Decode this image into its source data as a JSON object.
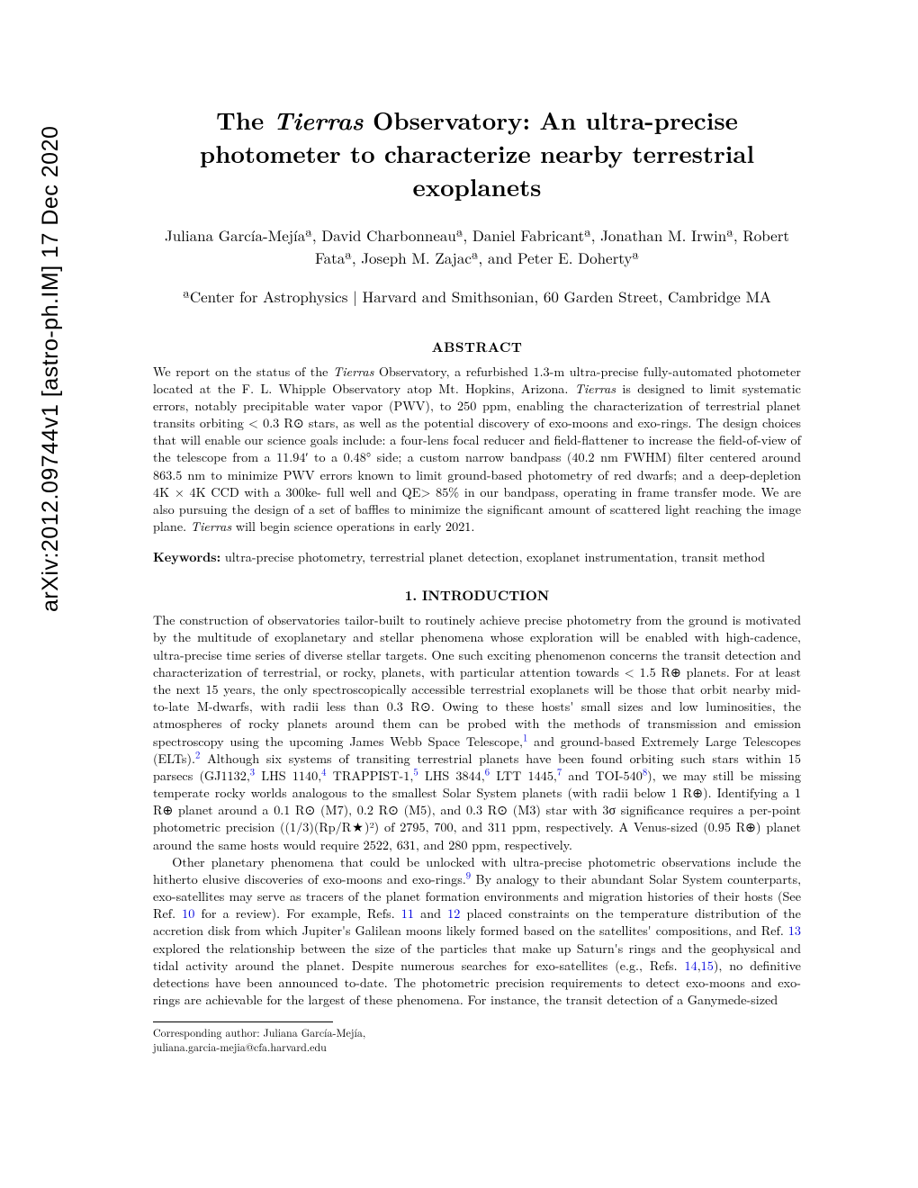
{
  "arxiv_stamp": "arXiv:2012.09744v1  [astro-ph.IM]  17 Dec 2020",
  "title_prefix": "The ",
  "title_italic": "Tierras",
  "title_rest": " Observatory: An ultra-precise photometer to characterize nearby terrestrial exoplanets",
  "authors_line1": "Juliana García-Mejíaª, David Charbonneauª, Daniel Fabricantª, Jonathan M. Irwinª, Robert",
  "authors_line2": "Fataª, Joseph M. Zajacª, and Peter E. Dohertyª",
  "affiliation": "ªCenter for Astrophysics | Harvard and Smithsonian, 60 Garden Street, Cambridge MA",
  "abstract_heading": "ABSTRACT",
  "abstract_text_1": "We report on the status of the ",
  "abstract_italic_1": "Tierras",
  "abstract_text_2": " Observatory, a refurbished 1.3-m ultra-precise fully-automated photometer located at the F. L. Whipple Observatory atop Mt. Hopkins, Arizona. ",
  "abstract_italic_2": "Tierras",
  "abstract_text_3": " is designed to limit systematic errors, notably precipitable water vapor (PWV), to 250 ppm, enabling the characterization of terrestrial planet transits orbiting < 0.3 R⊙ stars, as well as the potential discovery of exo-moons and exo-rings. The design choices that will enable our science goals include: a four-lens focal reducer and field-flattener to increase the field-of-view of the telescope from a 11.94′ to a 0.48° side; a custom narrow bandpass (40.2 nm FWHM) filter centered around 863.5 nm to minimize PWV errors known to limit ground-based photometry of red dwarfs; and a deep-depletion 4K × 4K CCD with a 300ke- full well and QE> 85% in our bandpass, operating in frame transfer mode. We are also pursuing the design of a set of baffles to minimize the significant amount of scattered light reaching the image plane. ",
  "abstract_italic_3": "Tierras",
  "abstract_text_4": " will begin science operations in early 2021.",
  "keywords_label": "Keywords:",
  "keywords_text": " ultra-precise photometry, terrestrial planet detection, exoplanet instrumentation, transit method",
  "section1_heading": "1. INTRODUCTION",
  "para1_a": "The construction of observatories tailor-built to routinely achieve precise photometry from the ground is motivated by the multitude of exoplanetary and stellar phenomena whose exploration will be enabled with high-cadence, ultra-precise time series of diverse stellar targets. One such exciting phenomenon concerns the transit detection and characterization of terrestrial, or rocky, planets, with particular attention towards < 1.5 R⊕ planets. For at least the next 15 years, the only spectroscopically accessible terrestrial exoplanets will be those that orbit nearby mid-to-late M-dwarfs, with radii less than 0.3 R⊙. Owing to these hosts' small sizes and low luminosities, the atmospheres of rocky planets around them can be probed with the methods of transmission and emission spectroscopy using the upcoming James Webb Space Telescope,",
  "ref1": "1",
  "para1_b": " and ground-based Extremely Large Telescopes (ELTs).",
  "ref2": "2",
  "para1_c": " Although six systems of transiting terrestrial planets have been found orbiting such stars within 15 parsecs (GJ1132,",
  "ref3": "3",
  "para1_d": " LHS 1140,",
  "ref4": "4",
  "para1_e": " TRAPPIST-1,",
  "ref5": "5",
  "para1_f": " LHS 3844,",
  "ref6": "6",
  "para1_g": " LTT 1445,",
  "ref7": "7",
  "para1_h": " and TOI-540",
  "ref8": "8",
  "para1_i": "), we may still be missing temperate rocky worlds analogous to the smallest Solar System planets (with radii below 1 R⊕). Identifying a 1 R⊕ planet around a 0.1 R⊙ (M7), 0.2 R⊙ (M5), and 0.3 R⊙ (M3) star with 3σ significance requires a per-point photometric precision ((1/3)(Rp/R★)²) of 2795, 700, and 311 ppm, respectively. A Venus-sized (0.95 R⊕) planet around the same hosts would require 2522, 631, and 280 ppm, respectively.",
  "para2_a": "Other planetary phenomena that could be unlocked with ultra-precise photometric observations include the hitherto elusive discoveries of exo-moons and exo-rings.",
  "ref9": "9",
  "para2_b": " By analogy to their abundant Solar System counterparts, exo-satellites may serve as tracers of the planet formation environments and migration histories of their hosts (See Ref. ",
  "ref10": "10",
  "para2_c": " for a review). For example, Refs. ",
  "ref11": "11",
  "para2_d": " and ",
  "ref12": "12",
  "para2_e": " placed constraints on the temperature distribution of the accretion disk from which Jupiter's Galilean moons likely formed based on the satellites' compositions, and Ref. ",
  "ref13": "13",
  "para2_f": " explored the relationship between the size of the particles that make up Saturn's rings and the geophysical and tidal activity around the planet. Despite numerous searches for exo-satellites (e.g., Refs. ",
  "ref14": "14",
  "para2_g": ",",
  "ref15": "15",
  "para2_h": "), no definitive detections have been announced to-date. The photometric precision requirements to detect exo-moons and exo-rings are achievable for the largest of these phenomena. For instance, the transit detection of a Ganymede-sized",
  "footnote_line1": "Corresponding author: Juliana García-Mejía,",
  "footnote_line2": "juliana.garcia-mejia@cfa.harvard.edu"
}
